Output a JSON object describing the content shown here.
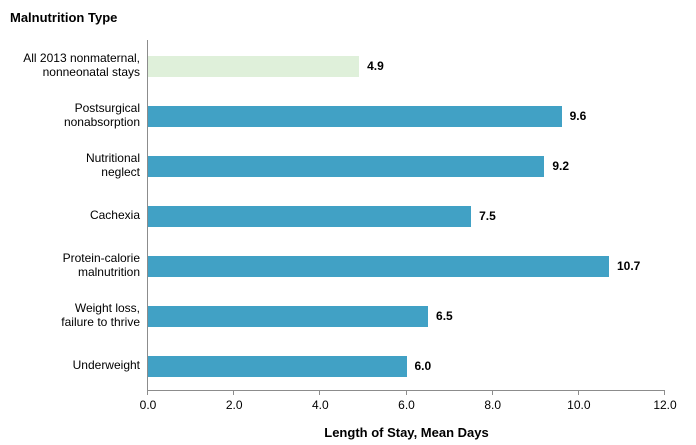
{
  "chart_data": {
    "type": "bar",
    "orientation": "horizontal",
    "title": "Malnutrition Type",
    "xlabel": "Length of Stay, Mean Days",
    "xlim": [
      0,
      12
    ],
    "grid": false,
    "legend": false,
    "categories": [
      "All 2013 nonmaternal,\nnonneonatal stays",
      "Postsurgical\nnonabsorption",
      "Nutritional\nneglect",
      "Cachexia",
      "Protein-calorie\nmalnutrition",
      "Weight loss,\nfailure to thrive",
      "Underweight"
    ],
    "values": [
      4.9,
      9.6,
      9.2,
      7.5,
      10.7,
      6.5,
      6.0
    ],
    "value_labels": [
      "4.9",
      "9.6",
      "9.2",
      "7.5",
      "10.7",
      "6.5",
      "6.0"
    ],
    "bar_colors": [
      "#dff0da",
      "#41a1c5",
      "#41a1c5",
      "#41a1c5",
      "#41a1c5",
      "#41a1c5",
      "#41a1c5"
    ],
    "xticks": [
      {
        "value": 0,
        "label": "0.0"
      },
      {
        "value": 2,
        "label": "2.0"
      },
      {
        "value": 4,
        "label": "4.0"
      },
      {
        "value": 6,
        "label": "6.0"
      },
      {
        "value": 8,
        "label": "8.0"
      },
      {
        "value": 10,
        "label": "10.0"
      },
      {
        "value": 12,
        "label": "12.0"
      }
    ],
    "colors": {
      "highlight_bar": "#dff0da",
      "default_bar": "#41a1c5",
      "axis": "#8c8c8c",
      "text": "#000000"
    }
  }
}
